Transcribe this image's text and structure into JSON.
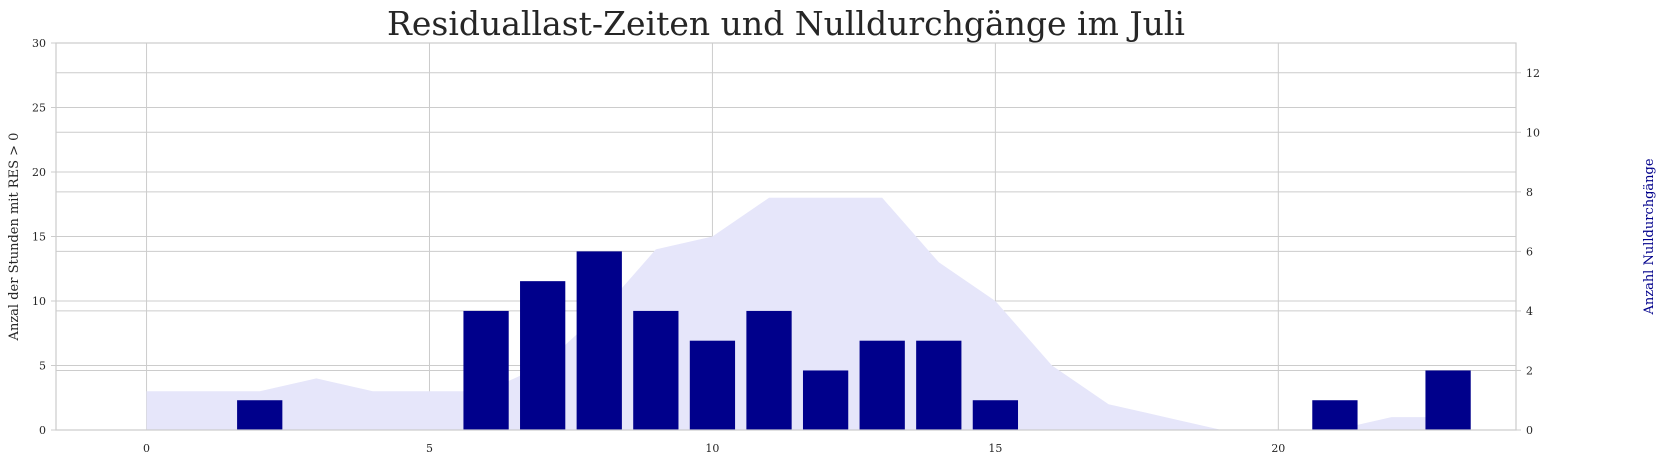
{
  "chart_data": {
    "type": "bar",
    "title": "Residuallast-Zeiten und Nulldurchgänge im Juli",
    "xlabel": "",
    "ylabel": "Anzal der Stunden mit RES > 0",
    "y2label": "Anzahl Nulldurchgänge",
    "xlim": [
      -1.6,
      24.2
    ],
    "xticks": [
      0,
      5,
      10,
      15,
      20
    ],
    "ylim": [
      0,
      30
    ],
    "yticks": [
      0,
      5,
      10,
      15,
      20,
      25,
      30
    ],
    "y2lim": [
      0,
      13
    ],
    "y2ticks": [
      0,
      2,
      4,
      6,
      8,
      10,
      12
    ],
    "grid": true,
    "area": {
      "axis": "left",
      "color": "#e6e6fa",
      "x": [
        0,
        1,
        2,
        3,
        4,
        5,
        6,
        7,
        8,
        9,
        10,
        11,
        12,
        13,
        14,
        15,
        16,
        17,
        18,
        19,
        20,
        21,
        22,
        23
      ],
      "y": [
        3,
        3,
        3,
        4,
        3,
        3,
        3,
        5,
        9,
        14,
        15,
        18,
        18,
        18,
        13,
        10,
        5,
        2,
        1,
        0,
        0,
        0,
        1,
        1
      ]
    },
    "bars": {
      "axis": "right",
      "color": "#00008b",
      "x": [
        2,
        6,
        7,
        8,
        9,
        10,
        11,
        12,
        13,
        14,
        15,
        21,
        23
      ],
      "values": [
        1,
        4,
        5,
        6,
        4,
        3,
        4,
        2,
        3,
        3,
        1,
        1,
        2
      ]
    }
  }
}
